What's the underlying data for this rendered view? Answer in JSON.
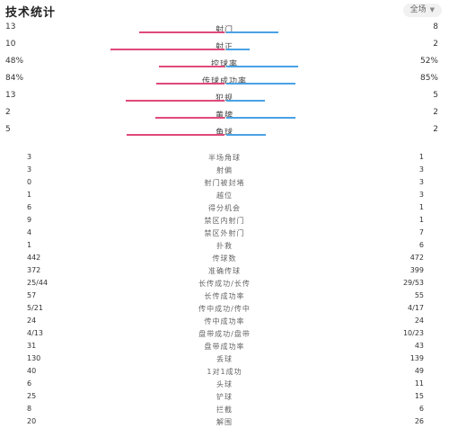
{
  "header": {
    "title": "技术统计",
    "filter": "全场"
  },
  "bar_stats": [
    {
      "label": "射门",
      "home": "13",
      "away": "8",
      "home_share": 0.62,
      "away_share": 0.38
    },
    {
      "label": "射正",
      "home": "10",
      "away": "2",
      "home_share": 0.83,
      "away_share": 0.17
    },
    {
      "label": "控球率",
      "home": "48%",
      "away": "52%",
      "home_share": 0.48,
      "away_share": 0.52
    },
    {
      "label": "传球成功率",
      "home": "84%",
      "away": "85%",
      "home_share": 0.497,
      "away_share": 0.503
    },
    {
      "label": "犯规",
      "home": "13",
      "away": "5",
      "home_share": 0.72,
      "away_share": 0.28
    },
    {
      "label": "黄牌",
      "home": "2",
      "away": "2",
      "home_share": 0.5,
      "away_share": 0.5
    },
    {
      "label": "角球",
      "home": "5",
      "away": "2",
      "home_share": 0.71,
      "away_share": 0.29
    }
  ],
  "stats": [
    {
      "label": "半场角球",
      "home": "3",
      "away": "1"
    },
    {
      "label": "射偏",
      "home": "3",
      "away": "3"
    },
    {
      "label": "射门被封堵",
      "home": "0",
      "away": "3"
    },
    {
      "label": "越位",
      "home": "1",
      "away": "3"
    },
    {
      "label": "得分机会",
      "home": "6",
      "away": "1"
    },
    {
      "label": "禁区内射门",
      "home": "9",
      "away": "1"
    },
    {
      "label": "禁区外射门",
      "home": "4",
      "away": "7"
    },
    {
      "label": "扑救",
      "home": "1",
      "away": "6"
    },
    {
      "label": "传球数",
      "home": "442",
      "away": "472"
    },
    {
      "label": "准确传球",
      "home": "372",
      "away": "399"
    },
    {
      "label": "长传成功/长传",
      "home": "25/44",
      "away": "29/53"
    },
    {
      "label": "长传成功率",
      "home": "57",
      "away": "55"
    },
    {
      "label": "传中成功/传中",
      "home": "5/21",
      "away": "4/17"
    },
    {
      "label": "传中成功率",
      "home": "24",
      "away": "24"
    },
    {
      "label": "盘带成功/盘带",
      "home": "4/13",
      "away": "10/23"
    },
    {
      "label": "盘带成功率",
      "home": "31",
      "away": "43"
    },
    {
      "label": "丢球",
      "home": "130",
      "away": "139"
    },
    {
      "label": "1对1成功",
      "home": "40",
      "away": "49"
    },
    {
      "label": "头球",
      "home": "6",
      "away": "11"
    },
    {
      "label": "铲球",
      "home": "25",
      "away": "15"
    },
    {
      "label": "拦截",
      "home": "8",
      "away": "6"
    },
    {
      "label": "解围",
      "home": "20",
      "away": "26"
    }
  ],
  "colors": {
    "home": "#e0497a",
    "away": "#4aa2e6"
  }
}
